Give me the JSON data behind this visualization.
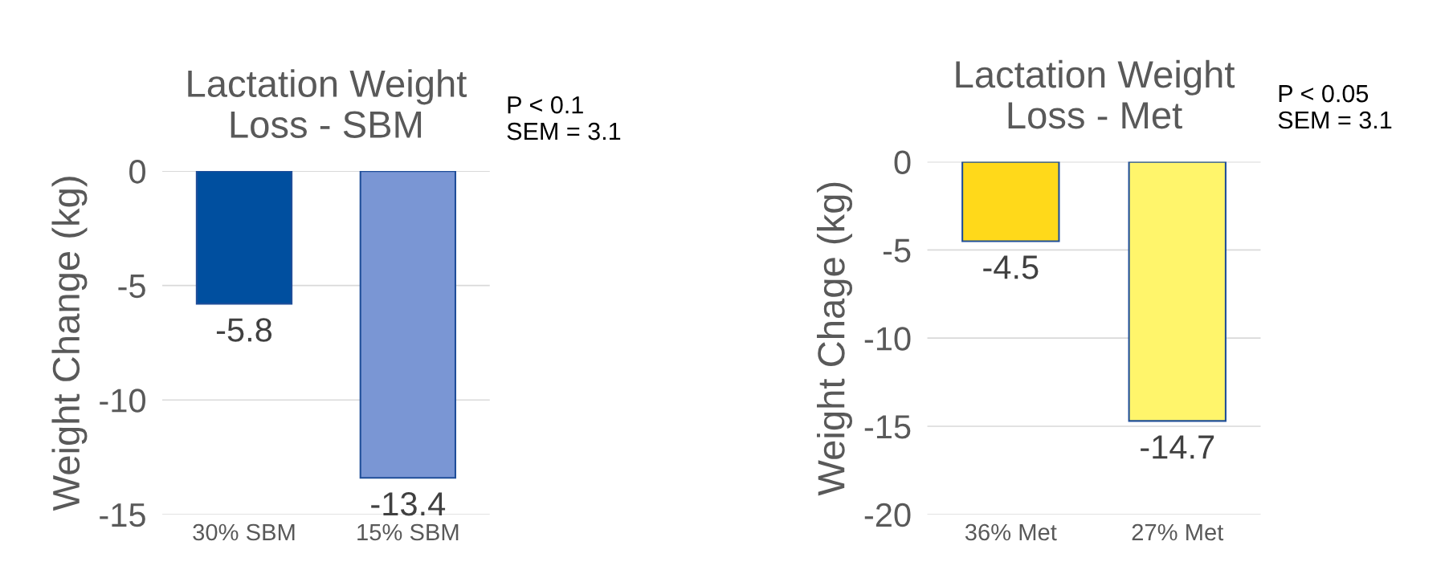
{
  "chart_data": [
    {
      "type": "bar",
      "title": "Lactation Weight\nLoss - SBM",
      "ylabel": "Weight Change (kg)",
      "categories": [
        "30% SBM",
        "15% SBM"
      ],
      "series": [
        {
          "colors": [
            "#004f9f",
            "#7a96d4"
          ],
          "values": [
            -5.8,
            -13.4
          ]
        }
      ],
      "ylim": [
        -15,
        0
      ],
      "yticks": [
        -15,
        -10,
        -5,
        0
      ],
      "grid": "y",
      "data_labels": true,
      "annotations": [
        "P < 0.1\nSEM = 3.1"
      ]
    },
    {
      "type": "bar",
      "title": "Lactation Weight\nLoss - Met",
      "ylabel": "Weight Chage (kg)",
      "categories": [
        "36% Met",
        "27% Met"
      ],
      "series": [
        {
          "colors": [
            "#ffd91a",
            "#fff56b"
          ],
          "values": [
            -4.5,
            -14.7
          ]
        }
      ],
      "ylim": [
        -20,
        0
      ],
      "yticks": [
        -20,
        -15,
        -10,
        -5,
        0
      ],
      "grid": "y",
      "data_labels": true,
      "annotations": [
        "P < 0.05\nSEM = 3.1"
      ]
    }
  ]
}
